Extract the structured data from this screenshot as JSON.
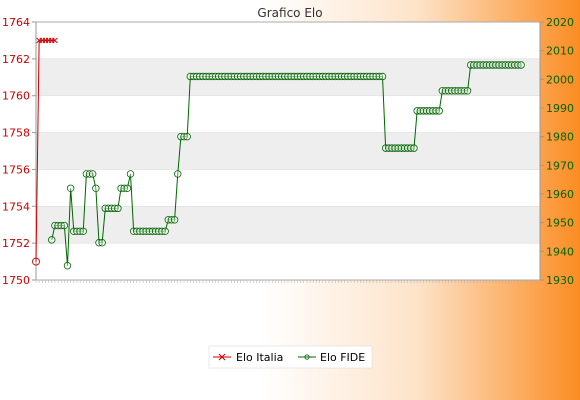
{
  "chart_data": {
    "type": "line",
    "title": "Grafico Elo",
    "y_left": {
      "min": 1750,
      "max": 1764,
      "ticks": [
        1750,
        1752,
        1754,
        1756,
        1758,
        1760,
        1762,
        1764
      ]
    },
    "y_right": {
      "min": 1930,
      "max": 2020,
      "ticks": [
        1930,
        1940,
        1950,
        1960,
        1970,
        1980,
        1990,
        2000,
        2010,
        2020
      ]
    },
    "x_count": 161,
    "legend_position": "bottom-center",
    "grid": "horizontal-bands",
    "series": [
      {
        "name": "Elo Italia",
        "axis": "left",
        "color": "#cc0000",
        "values": [
          1751,
          1763,
          1763,
          1763,
          1763,
          1763,
          1763
        ]
      },
      {
        "name": "Elo FIDE",
        "axis": "right",
        "color": "#006600",
        "segments": [
          {
            "count": 1,
            "value": null
          },
          {
            "count": 4,
            "value": null
          },
          {
            "count": 1,
            "value": 1944
          },
          {
            "count": 1,
            "value": 1949
          },
          {
            "count": 3,
            "value": 1949
          },
          {
            "count": 1,
            "value": 1935
          },
          {
            "count": 1,
            "value": 1962
          },
          {
            "count": 1,
            "value": 1947
          },
          {
            "count": 2,
            "value": 1947
          },
          {
            "count": 1,
            "value": 1947
          },
          {
            "count": 3,
            "value": 1967
          },
          {
            "count": 1,
            "value": 1962
          },
          {
            "count": 2,
            "value": 1943
          },
          {
            "count": 1,
            "value": 1955
          },
          {
            "count": 4,
            "value": 1955
          },
          {
            "count": 3,
            "value": 1962
          },
          {
            "count": 1,
            "value": 1967
          },
          {
            "count": 11,
            "value": 1947
          },
          {
            "count": 3,
            "value": 1951
          },
          {
            "count": 1,
            "value": 1967
          },
          {
            "count": 3,
            "value": 1980
          },
          {
            "count": 62,
            "value": 2001
          },
          {
            "count": 10,
            "value": 1976
          },
          {
            "count": 8,
            "value": 1989
          },
          {
            "count": 9,
            "value": 1996
          },
          {
            "count": 17,
            "value": 2005
          }
        ]
      }
    ]
  }
}
